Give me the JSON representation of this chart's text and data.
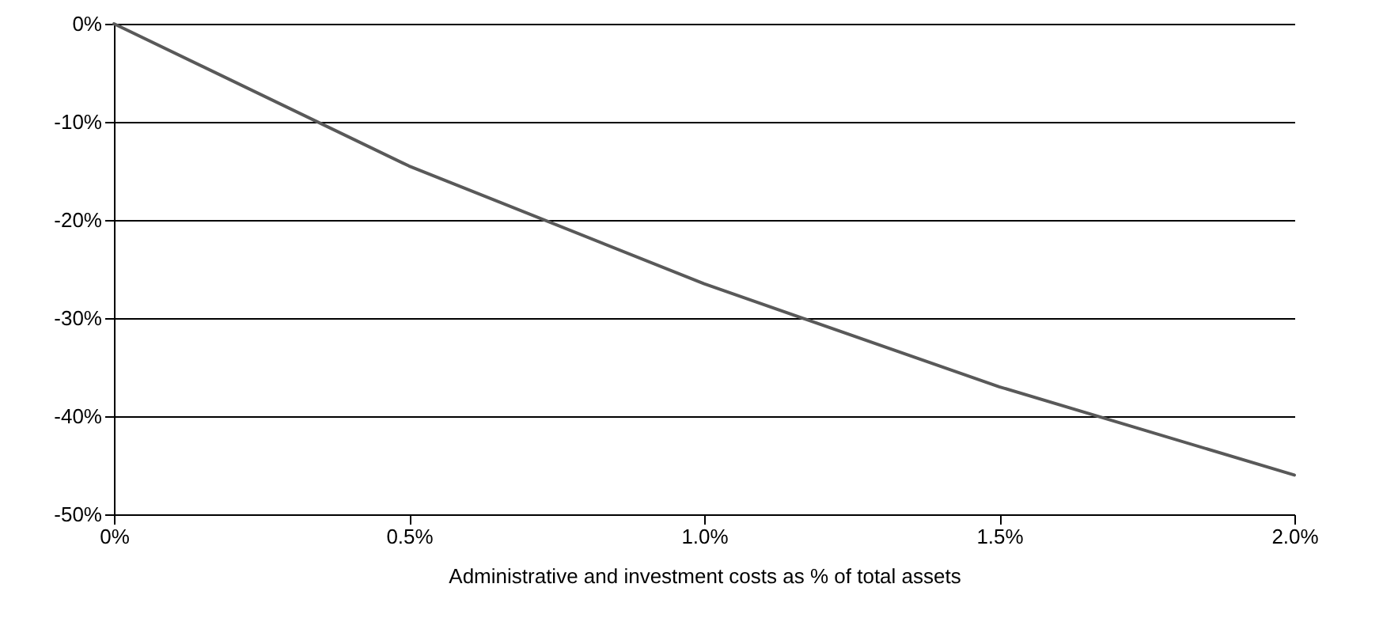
{
  "chart_data": {
    "type": "line",
    "xlabel": "Administrative and investment costs as % of total assets",
    "x": [
      0,
      0.5,
      1.0,
      1.5,
      2.0
    ],
    "series": [
      {
        "color": "#595959",
        "values": [
          0,
          -14.5,
          -26.5,
          -37,
          -46
        ]
      }
    ],
    "xlim": [
      0,
      2
    ],
    "xticks": [
      {
        "value": 0,
        "label": "0%"
      },
      {
        "value": 0.5,
        "label": "0.5%"
      },
      {
        "value": 1,
        "label": "1.0%"
      },
      {
        "value": 1.5,
        "label": "1.5%"
      },
      {
        "value": 2,
        "label": "2.0%"
      }
    ],
    "ylim": [
      -50,
      0
    ],
    "yticks": [
      {
        "value": -50,
        "label": "-50%"
      },
      {
        "value": -40,
        "label": "-40%"
      },
      {
        "value": -30,
        "label": "-30%"
      },
      {
        "value": -20,
        "label": "-20%"
      },
      {
        "value": -10,
        "label": "-10%"
      },
      {
        "value": 0,
        "label": "0%"
      }
    ],
    "grid": "y"
  }
}
